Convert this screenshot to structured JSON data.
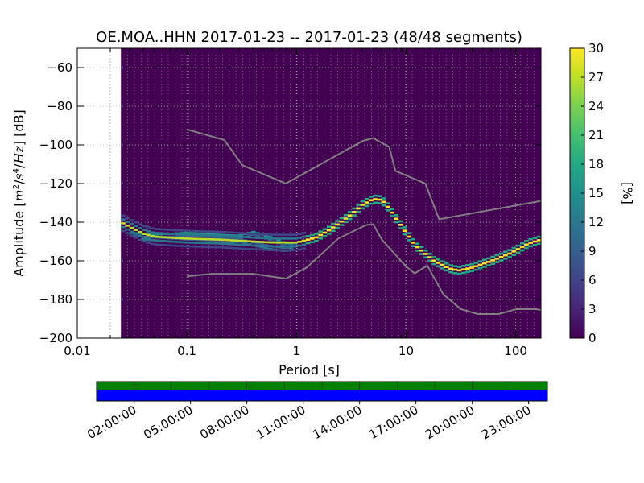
{
  "title": "OE.MOA..HHN   2017-01-23 -- 2017-01-23  (48/48 segments)",
  "chart_data": {
    "type": "heatmap",
    "title": "OE.MOA..HHN   2017-01-23 -- 2017-01-23  (48/48 segments)",
    "xlabel": "Period [s]",
    "ylabel": "Amplitude [m²/s⁴/Hz] [dB]",
    "x_scale": "log",
    "xlim": [
      0.01,
      170
    ],
    "ylim": [
      -200,
      -50
    ],
    "x_ticks": [
      {
        "value": 0.01,
        "label": "0.01"
      },
      {
        "value": 0.1,
        "label": "0.1"
      },
      {
        "value": 1,
        "label": "1"
      },
      {
        "value": 10,
        "label": "10"
      },
      {
        "value": 100,
        "label": "100"
      }
    ],
    "y_ticks": [
      {
        "value": -60,
        "label": "−60"
      },
      {
        "value": -80,
        "label": "−80"
      },
      {
        "value": -100,
        "label": "−100"
      },
      {
        "value": -120,
        "label": "−120"
      },
      {
        "value": -140,
        "label": "−140"
      },
      {
        "value": -160,
        "label": "−160"
      },
      {
        "value": -180,
        "label": "−180"
      },
      {
        "value": -200,
        "label": "−200"
      }
    ],
    "data_period_min": 0.025,
    "nyquist_period": 0.02,
    "grid": true,
    "background_color": "#440154",
    "noise_model_color": "#808080",
    "high_noise_model": [
      [
        0.1,
        -92
      ],
      [
        0.22,
        -97.5
      ],
      [
        0.32,
        -110.5
      ],
      [
        0.8,
        -120
      ],
      [
        4,
        -98
      ],
      [
        5,
        -96.5
      ],
      [
        7,
        -101
      ],
      [
        8,
        -113.5
      ],
      [
        15,
        -120
      ],
      [
        20,
        -138.5
      ],
      [
        170,
        -129
      ]
    ],
    "low_noise_model": [
      [
        0.1,
        -168
      ],
      [
        0.17,
        -166.7
      ],
      [
        0.4,
        -166.7
      ],
      [
        0.8,
        -169.2
      ],
      [
        1.24,
        -163.5
      ],
      [
        2.4,
        -148.5
      ],
      [
        4.3,
        -141.5
      ],
      [
        5,
        -141
      ],
      [
        6,
        -149
      ],
      [
        10,
        -163
      ],
      [
        12,
        -166.5
      ],
      [
        15.6,
        -162.4
      ],
      [
        21.9,
        -177.4
      ],
      [
        31.6,
        -185
      ],
      [
        45,
        -187.5
      ],
      [
        70,
        -187.5
      ],
      [
        101,
        -185
      ],
      [
        154,
        -185
      ],
      [
        170,
        -185.5
      ]
    ],
    "ppsd_mode": [
      [
        0.025,
        -140
      ],
      [
        0.03,
        -142.5
      ],
      [
        0.04,
        -146
      ],
      [
        0.05,
        -147.5
      ],
      [
        0.1,
        -148.5
      ],
      [
        0.2,
        -149
      ],
      [
        0.4,
        -150
      ],
      [
        0.6,
        -150.5
      ],
      [
        0.8,
        -150.5
      ],
      [
        1,
        -150.5
      ],
      [
        1.5,
        -148
      ],
      [
        2,
        -144
      ],
      [
        3,
        -137
      ],
      [
        4,
        -131
      ],
      [
        5,
        -128
      ],
      [
        6,
        -128.5
      ],
      [
        7,
        -133
      ],
      [
        9,
        -142
      ],
      [
        12,
        -152
      ],
      [
        18,
        -160
      ],
      [
        25,
        -164
      ],
      [
        30,
        -165
      ],
      [
        40,
        -163.5
      ],
      [
        60,
        -160
      ],
      [
        90,
        -156
      ],
      [
        130,
        -151
      ],
      [
        170,
        -149
      ]
    ],
    "ppsd_secondary_band": [
      [
        0.03,
        -145.5
      ],
      [
        0.05,
        -146.5
      ],
      [
        0.1,
        -145.5
      ],
      [
        0.2,
        -146.5
      ],
      [
        0.3,
        -147
      ],
      [
        0.4,
        -145
      ],
      [
        0.6,
        -148
      ],
      [
        0.8,
        -151
      ],
      [
        1,
        -151
      ]
    ],
    "ppsd_tertiary_band": [
      [
        0.04,
        -149
      ],
      [
        0.1,
        -150.5
      ],
      [
        0.2,
        -151
      ],
      [
        0.3,
        -150
      ],
      [
        0.4,
        -152
      ],
      [
        0.6,
        -154
      ],
      [
        0.8,
        -155
      ],
      [
        1,
        -152
      ]
    ],
    "colorbar": {
      "label": "[%]",
      "min": 0,
      "max": 30,
      "ticks": [
        "0",
        "3",
        "6",
        "9",
        "12",
        "15",
        "18",
        "21",
        "24",
        "27",
        "30"
      ],
      "colormap": "viridis"
    },
    "coverage": {
      "time_ticks": [
        "02:00:00",
        "05:00:00",
        "08:00:00",
        "11:00:00",
        "14:00:00",
        "17:00:00",
        "20:00:00",
        "23:00:00"
      ],
      "top_band_color": "#008000",
      "bottom_band_color": "#0000ff",
      "segments": 12
    }
  }
}
